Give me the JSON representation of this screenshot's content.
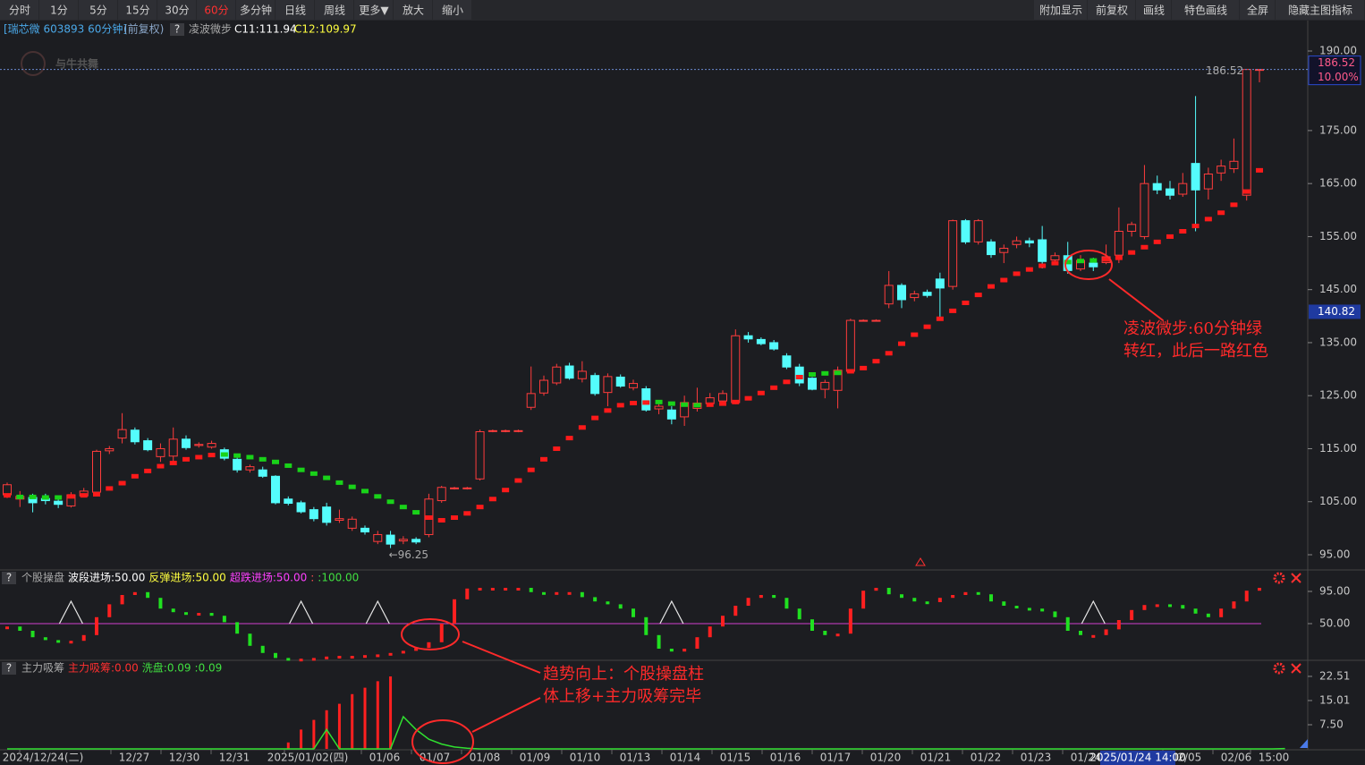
{
  "toolbar": {
    "left": [
      "分时",
      "1分",
      "5分",
      "15分",
      "30分",
      "60分",
      "多分钟",
      "日线",
      "周线",
      "更多▼",
      "放大",
      "缩小"
    ],
    "active_index": 5,
    "right": [
      "附加显示",
      "前复权",
      "画线",
      "特色画线",
      "全屏",
      "隐藏主图指标"
    ]
  },
  "header": {
    "title": "[瑞芯微 603893 60分钟]",
    "adjust": "(前复权)",
    "help": "?",
    "c11": "C11:111.94",
    "c12": "C12:109.97"
  },
  "watermark": "与牛共舞",
  "chart_data": [
    {
      "type": "candlestick",
      "up_color": "#ff3c3c",
      "down_color": "#54fcfc",
      "open": [
        106.3,
        105.5,
        105.8,
        105.6,
        105.1,
        104.2,
        106.1,
        106.8,
        114.6,
        117,
        118.5,
        116.5,
        113.5,
        113.6,
        116.8,
        115.6,
        115.3,
        114.8,
        113,
        111,
        111,
        109.8,
        105.5,
        104.8,
        103.5,
        104,
        101.5,
        100,
        100,
        97.5,
        98.7,
        97.6,
        97.9,
        98.8,
        105.2,
        107.5,
        107.5,
        109.3,
        118.3,
        118.3,
        118.3,
        122.8,
        125.5,
        127.4,
        130.6,
        128.2,
        128.8,
        125.6,
        128.5,
        126.5,
        126.3,
        122.5,
        122.3,
        121,
        122.6,
        123.5,
        124,
        123.7,
        136.3,
        135.6,
        135,
        132.5,
        130.4,
        128.3,
        126.2,
        126,
        129.6,
        139.1,
        139.1,
        142.3,
        145.8,
        143.5,
        144.5,
        147,
        145.6,
        158,
        154,
        154,
        152,
        153.5,
        154.2,
        154.4,
        150.6,
        151.4,
        148.9,
        150,
        150.1,
        151.5,
        156,
        155,
        165,
        164,
        163,
        168.8,
        164,
        167,
        167.8,
        162.8,
        186.52
      ],
      "high": [
        108.6,
        107,
        106.5,
        106.5,
        105.8,
        106.8,
        107.6,
        114.8,
        115.5,
        121.7,
        119,
        117,
        116,
        119,
        117.5,
        116.2,
        116.5,
        115.2,
        113.3,
        112,
        111.6,
        110,
        106,
        105.2,
        104,
        104.8,
        103.5,
        102.2,
        100.5,
        99.5,
        99.5,
        98.5,
        98.3,
        106.5,
        108,
        107.8,
        107.8,
        118.6,
        118.6,
        118.6,
        118.6,
        130.5,
        128.8,
        131,
        131.2,
        131.5,
        129.3,
        129.2,
        129,
        128,
        126.8,
        123.8,
        123,
        125,
        126.5,
        125.5,
        126,
        137.5,
        137,
        136,
        135.5,
        133,
        131,
        128.5,
        128,
        130.5,
        139.5,
        139.4,
        139.4,
        148.5,
        146.2,
        144.8,
        145,
        148.2,
        158.2,
        158.3,
        158.3,
        154.5,
        153.5,
        155,
        154.8,
        157,
        152,
        154,
        151.5,
        151,
        153.5,
        160.5,
        157.8,
        168.5,
        166.5,
        165.5,
        167,
        181.5,
        168,
        169.5,
        173.5,
        186.52,
        186.52
      ],
      "low": [
        105.7,
        104,
        103,
        104.5,
        103.8,
        103.9,
        105.8,
        106.5,
        114,
        116,
        115.8,
        114.5,
        112.5,
        112.4,
        114.8,
        115.2,
        115,
        112.8,
        110.5,
        110.5,
        109.5,
        104.5,
        104.3,
        102.8,
        101.3,
        100.5,
        101,
        99.5,
        98.8,
        97,
        96.25,
        97,
        97,
        98.3,
        104.8,
        107.3,
        107.3,
        109,
        118.1,
        118.1,
        118.1,
        122.3,
        125,
        127,
        128,
        127.5,
        125,
        123,
        126.5,
        126,
        122,
        121.5,
        119.6,
        119.3,
        122,
        123,
        123.5,
        123.4,
        135,
        134.5,
        133.5,
        130,
        126.8,
        126,
        124.5,
        122.6,
        129.3,
        139,
        139,
        141.5,
        141.5,
        142.8,
        143.5,
        139.8,
        145,
        153.6,
        153.5,
        151,
        150,
        152.8,
        153,
        149,
        150,
        148,
        148.5,
        148.5,
        149.8,
        150,
        155,
        154.5,
        163,
        162,
        162.5,
        156,
        162,
        165.5,
        167,
        161.8,
        184.1
      ],
      "close": [
        108.2,
        106,
        104.8,
        105.2,
        104.5,
        106.3,
        107,
        114.5,
        115,
        118.6,
        116.3,
        114.8,
        115,
        116.8,
        115.2,
        115.8,
        116,
        113.2,
        111,
        111.6,
        109.8,
        104.8,
        104.7,
        103.1,
        101.8,
        101.1,
        101.8,
        101.7,
        99.3,
        98.8,
        97,
        97.9,
        97.4,
        105.5,
        107.7,
        107.6,
        107.6,
        118.2,
        118.4,
        118.4,
        118.4,
        125.4,
        127.9,
        130.4,
        128.3,
        129.6,
        125.4,
        128.6,
        126.8,
        127.3,
        122.3,
        123,
        120.6,
        123.7,
        123.6,
        124.6,
        125.4,
        136.3,
        135.7,
        134.8,
        133.8,
        130.4,
        127.4,
        126.2,
        127.5,
        129.8,
        139.2,
        139.2,
        139.2,
        145.8,
        143.1,
        144.2,
        143.9,
        145.3,
        158,
        154,
        158,
        151.6,
        152.8,
        154.2,
        153.8,
        150.3,
        151.4,
        148.6,
        150.5,
        149.3,
        151.2,
        156,
        157.3,
        165,
        163.8,
        162.8,
        165,
        163.8,
        166.8,
        168.3,
        169.2,
        186.52,
        186.52
      ],
      "series": [
        {
          "name": "凌波微步",
          "values": [
            106.2,
            105.9,
            105.9,
            105.8,
            105.8,
            106,
            106.2,
            106.4,
            107.5,
            108.5,
            109.8,
            110.8,
            111.7,
            112.3,
            113,
            113.4,
            113.8,
            113.9,
            113.7,
            113.4,
            113,
            112.5,
            111.8,
            111,
            110.3,
            109.5,
            108.6,
            107.8,
            107,
            106,
            105,
            104,
            103,
            102,
            101.5,
            102,
            102.8,
            104,
            105.5,
            107.2,
            109,
            111,
            113,
            115,
            117,
            119,
            120.8,
            122.2,
            123.2,
            123.6,
            123.7,
            123.8,
            123.5,
            123.3,
            123.2,
            123.3,
            123.5,
            123.8,
            124.5,
            125.5,
            126.5,
            127.6,
            128.5,
            129,
            129.2,
            129.3,
            129.6,
            130.2,
            131.5,
            133,
            134.8,
            136.5,
            138,
            139.5,
            141,
            142.5,
            144,
            145.6,
            146.8,
            148,
            148.8,
            149.5,
            150,
            150.2,
            150.4,
            150.5,
            150.7,
            151,
            152,
            153,
            154,
            155,
            156,
            157,
            158.3,
            159.5,
            161,
            163.5,
            167.5
          ],
          "colors": [
            "#ff1a1a",
            "#19d219",
            "#19d219",
            "#19d219",
            "#19d219",
            "#ff1a1a",
            "#ff1a1a",
            "#ff1a1a",
            "#ff1a1a",
            "#ff1a1a",
            "#ff1a1a",
            "#ff1a1a",
            "#ff1a1a",
            "#ff1a1a",
            "#ff1a1a",
            "#ff1a1a",
            "#ff1a1a",
            "#19d219",
            "#19d219",
            "#19d219",
            "#19d219",
            "#19d219",
            "#19d219",
            "#19d219",
            "#19d219",
            "#19d219",
            "#19d219",
            "#19d219",
            "#19d219",
            "#19d219",
            "#19d219",
            "#19d219",
            "#19d219",
            "#ff1a1a",
            "#ff1a1a",
            "#ff1a1a",
            "#ff1a1a",
            "#ff1a1a",
            "#ff1a1a",
            "#ff1a1a",
            "#ff1a1a",
            "#ff1a1a",
            "#ff1a1a",
            "#ff1a1a",
            "#ff1a1a",
            "#ff1a1a",
            "#ff1a1a",
            "#ff1a1a",
            "#ff1a1a",
            "#ff1a1a",
            "#ff1a1a",
            "#19d219",
            "#19d219",
            "#19d219",
            "#19d219",
            "#ff1a1a",
            "#ff1a1a",
            "#ff1a1a",
            "#ff1a1a",
            "#ff1a1a",
            "#ff1a1a",
            "#ff1a1a",
            "#ff1a1a",
            "#19d219",
            "#19d219",
            "#19d219",
            "#ff1a1a",
            "#ff1a1a",
            "#ff1a1a",
            "#ff1a1a",
            "#ff1a1a",
            "#ff1a1a",
            "#ff1a1a",
            "#ff1a1a",
            "#ff1a1a",
            "#ff1a1a",
            "#ff1a1a",
            "#ff1a1a",
            "#ff1a1a",
            "#ff1a1a",
            "#ff1a1a",
            "#ff1a1a",
            "#ff1a1a",
            "#19d219",
            "#19d219",
            "#19d219",
            "#ff1a1a",
            "#ff1a1a",
            "#ff1a1a",
            "#ff1a1a",
            "#ff1a1a",
            "#ff1a1a",
            "#ff1a1a",
            "#ff1a1a",
            "#ff1a1a",
            "#ff1a1a",
            "#ff1a1a",
            "#ff1a1a",
            "#ff1a1a"
          ]
        }
      ],
      "ylim": [
        92.13,
        191.69
      ],
      "yticks": [
        {
          "value": 190,
          "label": "190.00"
        },
        {
          "value": 175,
          "label": "175.00"
        },
        {
          "value": 165,
          "label": "165.00"
        },
        {
          "value": 155,
          "label": "155.00"
        },
        {
          "value": 145,
          "label": "145.00"
        },
        {
          "value": 135,
          "label": "135.00"
        },
        {
          "value": 125,
          "label": "125.00"
        },
        {
          "value": 115,
          "label": "115.00"
        },
        {
          "value": 105,
          "label": "105.00"
        },
        {
          "value": 95,
          "label": "95.00"
        }
      ],
      "price_line": {
        "value": 186.52,
        "pct": "10.00%"
      },
      "cursor_price": 140.82,
      "low_label": "←96.25"
    },
    {
      "type": "step-bar",
      "title": "个股操盘",
      "up_color": "#ff2020",
      "down_color": "#20e020",
      "legend": [
        {
          "text": "波段进场:50.00",
          "color": "#ffffff"
        },
        {
          "text": "反弹进场:50.00",
          "color": "#ffff40"
        },
        {
          "text": "超跌进场:50.00",
          "color": "#ff40ff"
        },
        {
          "text": ":",
          "color": "#ff5050"
        },
        {
          "text": ":100.00",
          "color": "#40e040"
        }
      ],
      "series": [
        {
          "values": [
            46,
            40,
            31,
            27,
            24,
            26,
            34,
            59,
            77,
            90,
            94,
            86,
            71,
            66,
            65,
            65,
            61,
            52,
            36,
            19,
            9,
            2,
            1,
            1,
            2,
            4,
            5,
            5,
            6,
            7,
            9,
            12,
            16,
            24,
            50,
            84,
            99,
            100,
            100,
            100,
            100,
            94,
            92,
            94,
            94,
            87,
            81,
            77,
            71,
            59,
            34,
            15,
            11,
            15,
            31,
            46,
            61,
            75,
            86,
            90,
            86,
            71,
            56,
            40,
            34,
            36,
            71,
            96,
            100,
            91,
            86,
            81,
            80,
            86,
            90,
            94,
            91,
            81,
            75,
            72,
            71,
            67,
            59,
            40,
            34,
            34,
            42,
            55,
            69,
            76,
            77,
            76,
            71,
            64,
            59,
            71,
            81,
            96,
            100
          ]
        }
      ],
      "signals": [
        5,
        23,
        29,
        52,
        85
      ],
      "ref_line": {
        "value": 50,
        "color": "#d040d0"
      },
      "ylim": [
        0,
        125
      ],
      "yticks": [
        {
          "value": 95,
          "label": "95.00"
        },
        {
          "value": 50,
          "label": "50.00"
        }
      ]
    },
    {
      "type": "bar-line",
      "title": "主力吸筹",
      "legend": [
        {
          "text": "主力吸筹:0.00",
          "color": "#ff3030"
        },
        {
          "text": "洗盘:0.09",
          "color": "#40e040"
        },
        {
          "text": ":0.09",
          "color": "#40e040"
        }
      ],
      "series": [
        {
          "color": "#ff2020",
          "values": [
            0,
            0,
            0,
            0,
            0,
            0,
            0,
            0,
            0,
            0,
            0,
            0,
            0,
            0,
            0,
            0,
            0,
            0,
            0,
            0,
            0,
            0,
            2,
            6,
            9,
            12,
            14,
            17,
            19,
            21,
            22.51,
            0,
            0,
            0,
            0,
            0,
            0,
            0,
            0,
            0,
            0,
            0,
            0,
            0,
            0,
            0,
            0,
            0,
            0,
            0,
            0,
            0,
            0,
            0,
            0,
            0,
            0,
            0,
            0,
            0,
            0,
            0,
            0,
            0,
            0,
            0,
            0,
            0,
            0,
            0,
            0,
            0,
            0,
            0,
            0,
            0,
            0,
            0,
            0,
            0,
            0,
            0,
            0,
            0,
            0,
            0,
            0,
            0,
            0,
            0,
            0,
            0,
            0,
            0,
            0,
            0,
            0,
            0,
            0
          ]
        },
        {
          "color": "#30e030",
          "values": [
            0,
            0,
            0,
            0,
            0,
            0,
            0,
            0,
            0,
            0,
            0,
            0,
            0,
            0,
            0,
            0,
            0,
            0,
            0,
            0,
            0,
            0,
            0,
            0,
            0,
            6,
            0,
            0,
            0,
            0,
            0,
            10,
            6,
            3,
            1.5,
            0.6,
            0.2,
            0,
            0,
            0,
            0,
            0,
            0,
            0,
            0,
            0,
            0,
            0,
            0,
            0,
            0,
            0,
            0,
            0,
            0,
            0,
            0,
            0,
            0,
            0,
            0,
            0,
            0,
            0,
            0,
            0,
            0,
            0,
            0,
            0,
            0,
            0,
            0,
            0,
            0,
            0,
            0,
            0,
            0,
            0,
            0,
            0,
            0,
            0,
            0,
            0,
            0,
            0,
            0,
            0,
            0,
            0,
            0,
            0,
            0,
            0,
            0,
            0,
            0,
            0,
            0.09
          ]
        }
      ],
      "ylim": [
        0,
        26.94
      ],
      "yticks": [
        22.51,
        15.01,
        {
          "value": 7.5,
          "label": "7.50"
        }
      ]
    }
  ],
  "x_axis": {
    "labels": [
      "2024/12/24(二)",
      "12/27",
      "12/30",
      "12/31",
      "2025/01/02(四)",
      "01/06",
      "01/07",
      "01/08",
      "01/09",
      "01/10",
      "01/13",
      "01/14",
      "01/15",
      "01/16",
      "01/17",
      "01/20",
      "01/21",
      "01/22",
      "01/23",
      "01/24",
      "02/05",
      "02/06",
      "15:00"
    ],
    "cursor_label": "2025/01/24 14:00"
  },
  "annotations": [
    {
      "lines": [
        "凌波微步:60分钟绿",
        "转红，此后一路红色"
      ]
    },
    {
      "lines": [
        "趋势向上：个股操盘柱",
        "体上移+主力吸筹完毕"
      ]
    }
  ]
}
